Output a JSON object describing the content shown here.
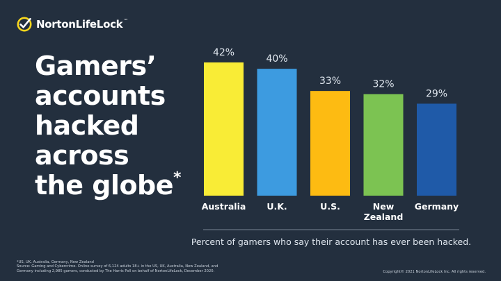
{
  "brand": {
    "logo_text": "NortonLifeLock",
    "logo_trademark": "™",
    "accent_color": "#f9d71c",
    "logo_icon": "check-circle-icon"
  },
  "headline": {
    "lines": [
      "Gamers’",
      "accounts",
      "hacked",
      "across",
      "the globe"
    ],
    "asterisk": "*"
  },
  "chart_data": {
    "type": "bar",
    "categories": [
      "Australia",
      "U.K.",
      "U.S.",
      "New Zealand",
      "Germany"
    ],
    "values": [
      42,
      40,
      33,
      32,
      29
    ],
    "value_labels": [
      "42%",
      "40%",
      "33%",
      "32%",
      "29%"
    ],
    "colors": [
      "#f9ec36",
      "#3d9be0",
      "#fdbb12",
      "#7cc352",
      "#1f5aa8"
    ],
    "category_label_lines": [
      [
        "Australia"
      ],
      [
        "U.K."
      ],
      [
        "U.S."
      ],
      [
        "New",
        "Zealand"
      ],
      [
        "Germany"
      ]
    ],
    "unit": "%",
    "ylim": [
      0,
      42
    ],
    "note": "Percent of gamers who say their account has ever been hacked.",
    "grid": false,
    "legend": "none"
  },
  "footnote": {
    "lines": [
      "*US, UK, Australia, Germany, New Zealand",
      "Source: Gaming and Cybercrime. Online survey of 6,124 adults 18+ in the US, UK, Australia, New Zealand, and",
      "Germany including 2,985 gamers, conducted by The Harris Poll on behalf of NortonLifeLock, December 2020."
    ]
  },
  "copyright": "Copyright© 2021 NortonLifeLock Inc. All rights reserved."
}
